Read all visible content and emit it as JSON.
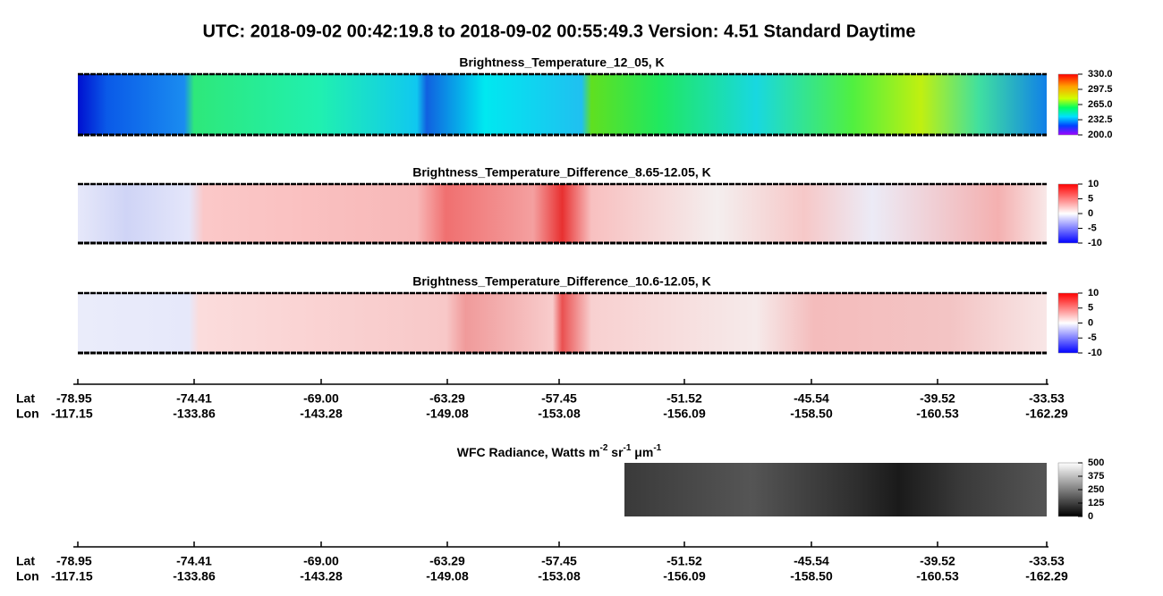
{
  "title": "UTC:  2018-09-02   00:42:19.8  to  2018-09-02   00:55:49.3    Version: 4.51  Standard Daytime",
  "panels": [
    {
      "title": "Brightness_Temperature_12_05, K",
      "colorbar_ticks": [
        "330.0",
        "297.5",
        "265.0",
        "232.5",
        "200.0"
      ]
    },
    {
      "title": "Brightness_Temperature_Difference_8.65-12.05, K",
      "colorbar_ticks": [
        "10",
        "5",
        "0",
        "-5",
        "-10"
      ]
    },
    {
      "title": "Brightness_Temperature_Difference_10.6-12.05, K",
      "colorbar_ticks": [
        "10",
        "5",
        "0",
        "-5",
        "-10"
      ]
    }
  ],
  "wfc": {
    "title_parts": [
      "WFC Radiance, Watts m",
      "-2",
      " sr",
      "-1",
      " μm",
      "-1"
    ],
    "colorbar_ticks": [
      "500",
      "375",
      "250",
      "125",
      "0"
    ]
  },
  "axis": {
    "lat_label": "Lat",
    "lon_label": "Lon",
    "lat": [
      "-78.95",
      "-74.41",
      "-69.00",
      "-63.29",
      "-57.45",
      "-51.52",
      "-45.54",
      "-39.52",
      "-33.53"
    ],
    "lon": [
      "-117.15",
      "-133.86",
      "-143.28",
      "-149.08",
      "-153.08",
      "-156.09",
      "-158.50",
      "-160.53",
      "-162.29"
    ]
  }
}
